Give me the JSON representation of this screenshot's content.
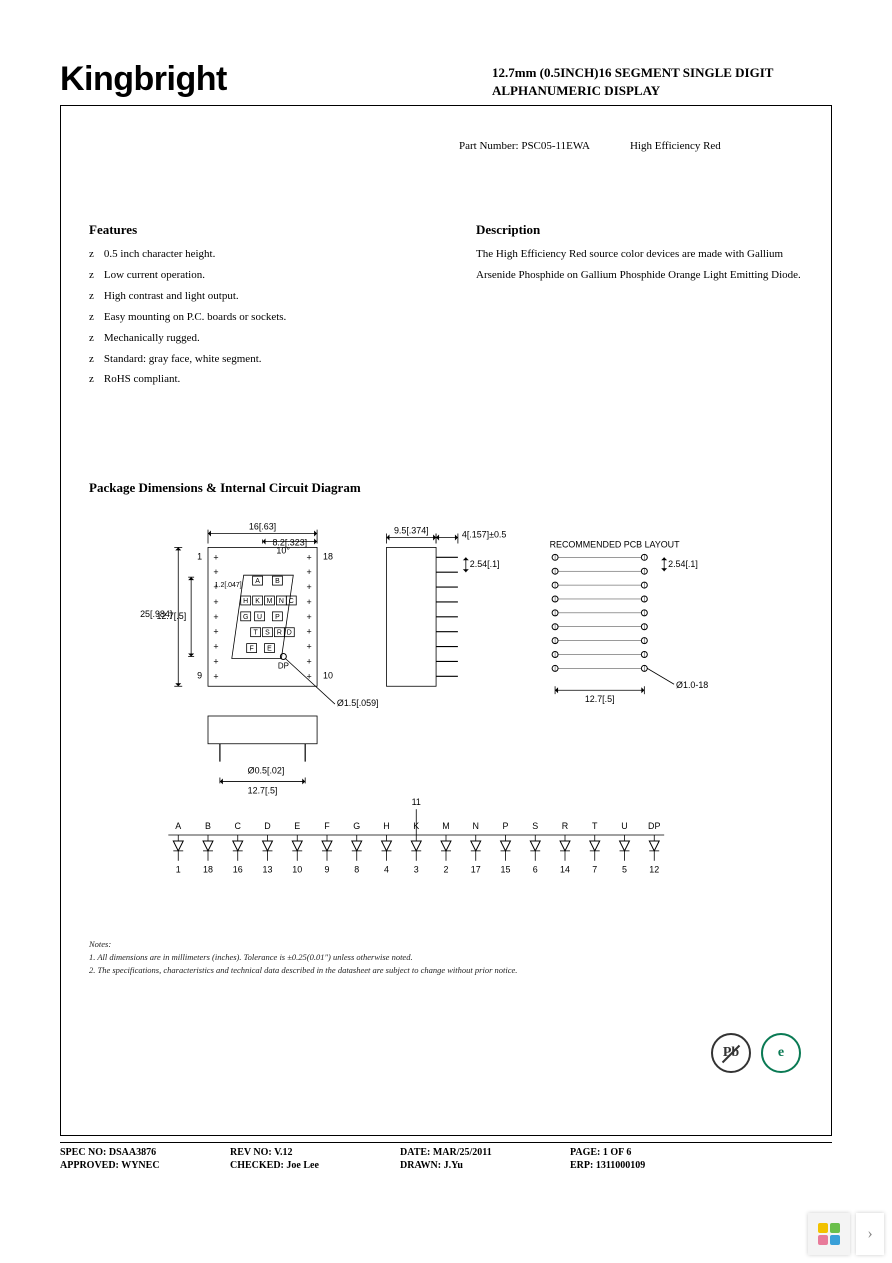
{
  "brand": "Kingbright",
  "title_line1": "12.7mm (0.5INCH)16 SEGMENT SINGLE DIGIT",
  "title_line2": "ALPHANUMERIC DISPLAY",
  "part_number_label": "Part Number: PSC05-11EWA",
  "part_color": "High Efficiency Red",
  "features_heading": "Features",
  "features": [
    "0.5 inch character height.",
    "Low current operation.",
    "High contrast and light output.",
    "Easy mounting on P.C. boards or sockets.",
    "Mechanically rugged.",
    "Standard: gray face, white segment.",
    "RoHS compliant."
  ],
  "description_heading": "Description",
  "description_text": "The High Efficiency Red source color devices are made with Gallium Arsenide Phosphide on Gallium Phosphide Orange Light Emitting Diode.",
  "package_heading": "Package Dimensions & Internal Circuit Diagram",
  "diagram": {
    "stroke": "#000000",
    "fill": "#ffffff",
    "text_color": "#000000",
    "font_size": 9,
    "dims": {
      "top_width": "16[.63]",
      "top_half": "8.2[.323]",
      "angle": "10°",
      "pin1": "1",
      "pin9": "9",
      "pin10": "10",
      "pin18": "18",
      "left_h": "25[.984]",
      "char_h": "12.7[.5]",
      "seg_w": "1.2[.047]",
      "dp_dia": "Ø1.5[.059]",
      "dp_label": "DP",
      "side_w": "9.5[.374]",
      "side_pin": "4[.157]±0.5",
      "pitch": "2.54[.1]",
      "pcb_label": "RECOMMENDED PCB LAYOUT",
      "pcb_pitch": "2.54[.1]",
      "pcb_w": "12.7[.5]",
      "pcb_hole": "Ø1.0-18",
      "bottom_pin_dia": "Ø0.5[.02]",
      "bottom_w": "12.7[.5]",
      "circuit_common": "11"
    },
    "segment_labels": [
      "A",
      "B",
      "H",
      "K",
      "M",
      "N",
      "C",
      "G",
      "U",
      "P",
      "T",
      "S",
      "R",
      "D",
      "F",
      "E",
      "DP"
    ],
    "circuit": {
      "letters": [
        "A",
        "B",
        "C",
        "D",
        "E",
        "F",
        "G",
        "H",
        "K",
        "M",
        "N",
        "P",
        "S",
        "R",
        "T",
        "U",
        "DP"
      ],
      "pins": [
        "1",
        "18",
        "16",
        "13",
        "10",
        "9",
        "8",
        "4",
        "3",
        "2",
        "17",
        "15",
        "6",
        "14",
        "7",
        "5",
        "12"
      ]
    }
  },
  "notes_heading": "Notes:",
  "notes": [
    "1. All dimensions are in millimeters (inches). Tolerance is ±0.25(0.01\") unless otherwise noted.",
    "2. The specifications, characteristics and technical data described in the datasheet are subject to change without prior notice."
  ],
  "badges": {
    "pb": "Pb",
    "rohs": "e"
  },
  "footer": {
    "row1": {
      "spec": "SPEC NO: DSAA3876",
      "rev": "REV NO: V.12",
      "date": "DATE: MAR/25/2011",
      "page": "PAGE: 1  OF  6"
    },
    "row2": {
      "approved": "APPROVED: WYNEC",
      "checked": "CHECKED: Joe Lee",
      "drawn": "DRAWN: J.Yu",
      "erp": "ERP: 1311000109"
    }
  },
  "colors": {
    "text": "#000000",
    "border": "#000000",
    "badge_green": "#0a7a54",
    "badge_gray": "#333333",
    "thumb_bg": "#f4f4f4"
  }
}
